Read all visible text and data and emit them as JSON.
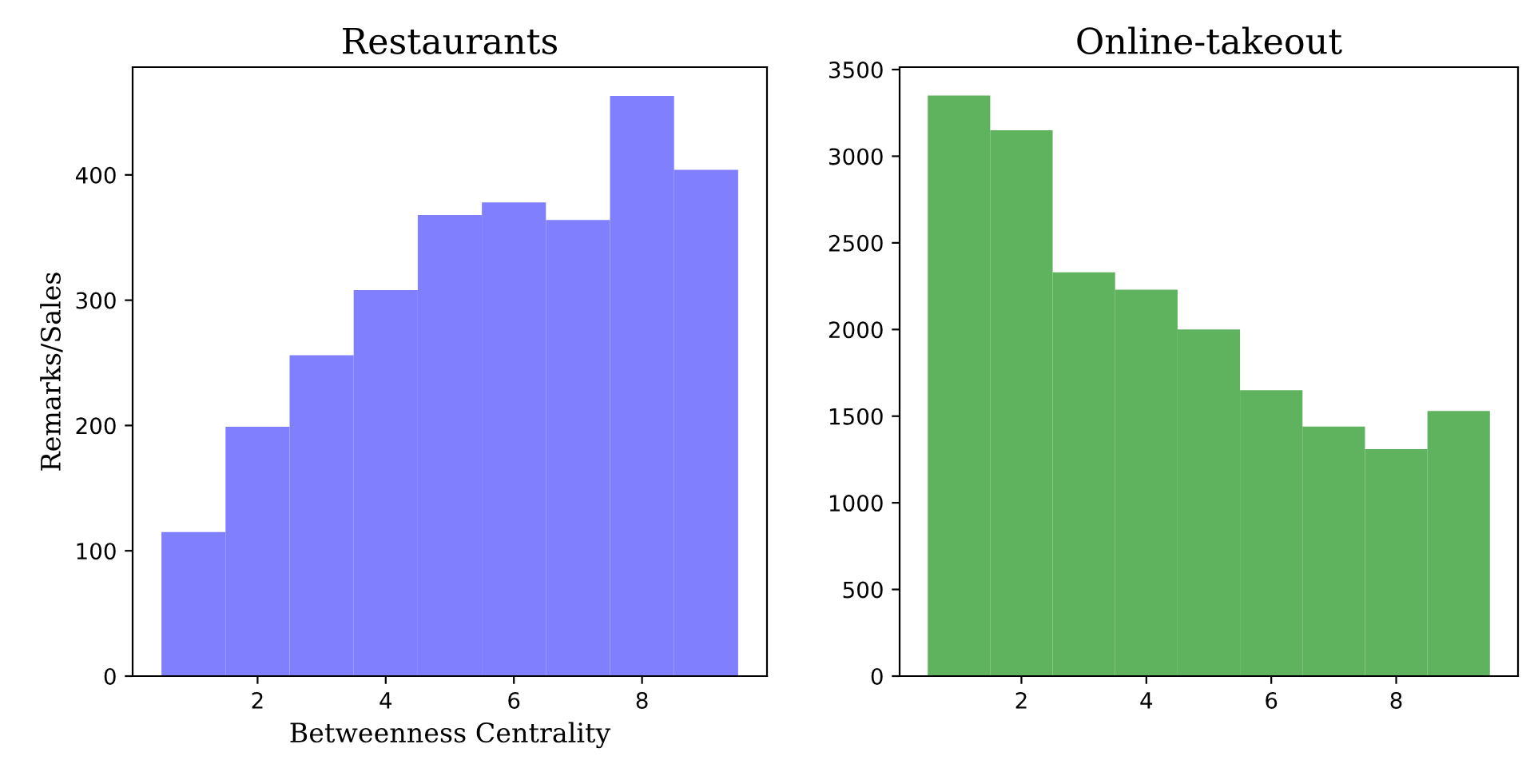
{
  "chart_data": [
    {
      "type": "histogram",
      "title": "Restaurants",
      "xlabel": "Betweenness Centrality",
      "ylabel": "Remarks/Sales",
      "color": "#8080ff",
      "bins": [
        0.5,
        1.5,
        2.5,
        3.5,
        4.5,
        5.5,
        6.5,
        7.5,
        8.5,
        9.5
      ],
      "values": [
        115,
        199,
        256,
        308,
        368,
        378,
        364,
        463,
        404
      ],
      "xlim": [
        0.05,
        9.95
      ],
      "ylim": [
        0,
        486
      ],
      "xticks": [
        2,
        4,
        6,
        8
      ],
      "yticks": [
        0,
        100,
        200,
        300,
        400
      ]
    },
    {
      "type": "histogram",
      "title": "Online-takeout",
      "color": "#5fb35f",
      "bins": [
        0.5,
        1.5,
        2.5,
        3.5,
        4.5,
        5.5,
        6.5,
        7.5,
        8.5,
        9.5
      ],
      "values": [
        3350,
        3150,
        2330,
        2230,
        2000,
        1650,
        1440,
        1310,
        1530
      ],
      "xlim": [
        0.05,
        9.95
      ],
      "ylim": [
        0,
        3514
      ],
      "xticks": [
        2,
        4,
        6,
        8
      ],
      "yticks": [
        0,
        500,
        1000,
        1500,
        2000,
        2500,
        3000,
        3500
      ]
    }
  ]
}
